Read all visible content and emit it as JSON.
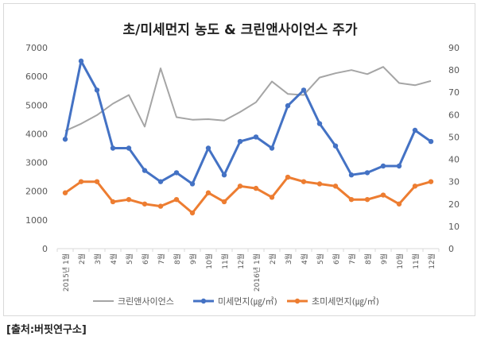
{
  "chart_data": {
    "type": "line",
    "title": "초/미세먼지 농도 & 크린앤사이언스 주가",
    "categories": [
      "2015년 1월",
      "2월",
      "3월",
      "4월",
      "5월",
      "6월",
      "7월",
      "8월",
      "9월",
      "10월",
      "11월",
      "12월",
      "2016년 1월",
      "2월",
      "3월",
      "4월",
      "5월",
      "6월",
      "7월",
      "8월",
      "9월",
      "10월",
      "11월",
      "12월"
    ],
    "y_left": {
      "ticks": [
        "0",
        "1000",
        "2000",
        "3000",
        "4000",
        "5000",
        "6000",
        "7000"
      ],
      "min": 0,
      "max": 7000
    },
    "y_right": {
      "ticks": [
        "0",
        "10",
        "20",
        "30",
        "40",
        "50",
        "60",
        "70",
        "80",
        "90"
      ],
      "min": 0,
      "max": 90
    },
    "series": [
      {
        "name": "크린앤사이언스",
        "axis": "left",
        "color": "#a5a5a5",
        "values": [
          4100,
          4350,
          4650,
          5050,
          5350,
          4250,
          6280,
          4580,
          4490,
          4510,
          4460,
          4760,
          5100,
          5820,
          5390,
          5350,
          5960,
          6110,
          6220,
          6080,
          6330,
          5770,
          5690,
          5840
        ]
      },
      {
        "name": "미세먼지(㎍/㎥)",
        "axis": "right",
        "color": "#4472c4",
        "values": [
          49,
          84,
          71,
          45,
          45,
          35,
          30,
          34,
          29,
          45,
          33,
          48,
          50,
          45,
          64,
          71,
          56,
          46,
          33,
          34,
          37,
          37,
          53,
          48
        ]
      },
      {
        "name": "초미세먼지(㎍/㎥)",
        "axis": "right",
        "color": "#ed7d31",
        "values": [
          25,
          30,
          30,
          21,
          22,
          20,
          19,
          22,
          16,
          25,
          21,
          28,
          27,
          23,
          32,
          30,
          29,
          28,
          22,
          22,
          24,
          20,
          28,
          30
        ]
      }
    ],
    "legend_position": "bottom",
    "grid": false
  },
  "source_label": "[출처:버핏연구소]"
}
